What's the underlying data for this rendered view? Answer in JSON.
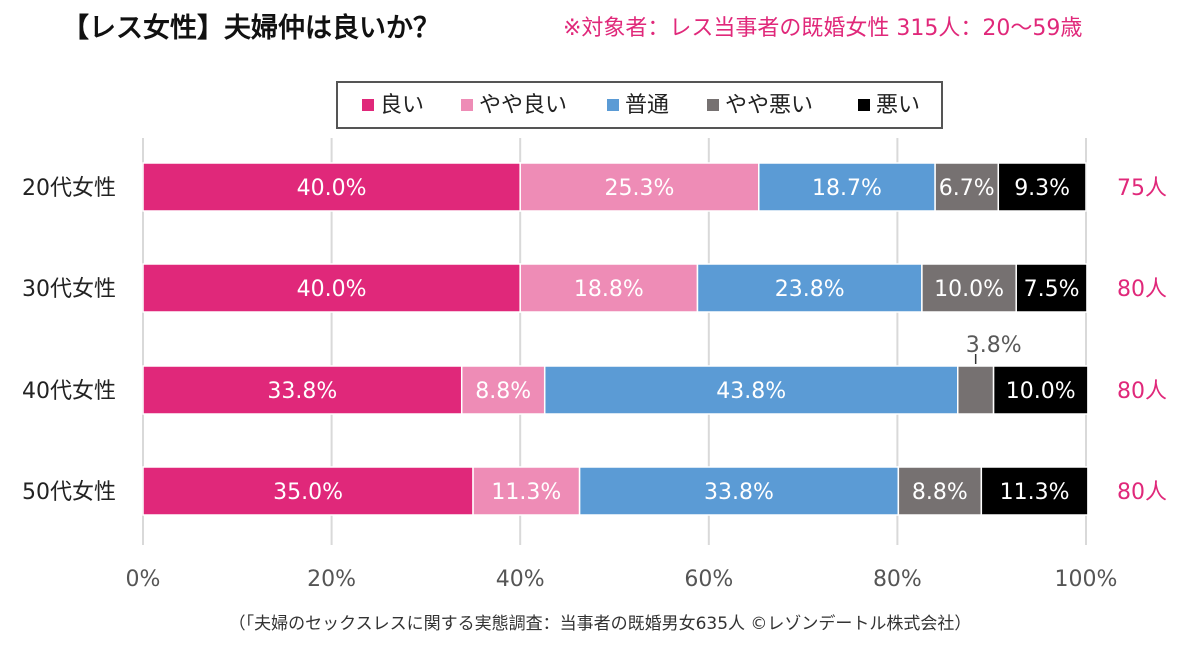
{
  "title": "【レス女性】夫婦仲は良いか？",
  "subtitle": "※対象者：レス当事者の既婚女性 315人：20〜59歳",
  "footnote": "（「夫婦のセックスレスに関する実態調査：当事者の既婚男女635人 ©レゾンデートル株式会社）",
  "chart_data": {
    "type": "bar",
    "orientation": "horizontal",
    "stacked": "percent",
    "title": "【レス女性】夫婦仲は良いか？",
    "categories": [
      "20代女性",
      "30代女性",
      "40代女性",
      "50代女性"
    ],
    "counts": [
      "75人",
      "80人",
      "80人",
      "80人"
    ],
    "xlim": [
      0,
      100
    ],
    "x_ticks": [
      "0%",
      "20%",
      "40%",
      "60%",
      "80%",
      "100%"
    ],
    "grid": "vertical",
    "legend_position": "top",
    "series": [
      {
        "name": "良い",
        "color": "#e0287a",
        "values": [
          40.0,
          40.0,
          33.8,
          35.0
        ],
        "labels": [
          "40.0%",
          "40.0%",
          "33.8%",
          "35.0%"
        ],
        "label_color": "#ffffff"
      },
      {
        "name": "やや良い",
        "color": "#ee8cb6",
        "values": [
          25.3,
          18.8,
          8.8,
          11.3
        ],
        "labels": [
          "25.3%",
          "18.8%",
          "8.8%",
          "11.3%"
        ],
        "label_color": "#ffffff"
      },
      {
        "name": "普通",
        "color": "#5b9bd5",
        "values": [
          18.7,
          23.8,
          43.8,
          33.8
        ],
        "labels": [
          "18.7%",
          "23.8%",
          "43.8%",
          "33.8%"
        ],
        "label_color": "#ffffff"
      },
      {
        "name": "やや悪い",
        "color": "#767171",
        "values": [
          6.7,
          10.0,
          3.8,
          8.8
        ],
        "labels": [
          "6.7%",
          "10.0%",
          "3.8%",
          "8.8%"
        ],
        "label_color": "#ffffff"
      },
      {
        "name": "悪い",
        "color": "#000000",
        "values": [
          9.3,
          7.5,
          10.0,
          11.3
        ],
        "labels": [
          "9.3%",
          "7.5%",
          "10.0%",
          "11.3%"
        ],
        "label_color": "#ffffff"
      }
    ],
    "outside_labels": [
      {
        "series": 3,
        "category": 2,
        "text": "3.8%",
        "color": "#595959"
      }
    ]
  }
}
